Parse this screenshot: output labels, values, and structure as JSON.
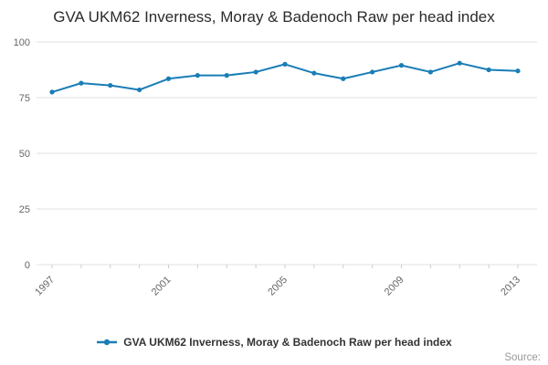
{
  "title": "GVA UKM62 Inverness, Moray & Badenoch Raw per head index",
  "legend": {
    "label": "GVA UKM62 Inverness, Moray & Badenoch Raw per head index"
  },
  "source": "Source:",
  "colors": {
    "line": "#1a7db6",
    "grid": "#e0e0e0",
    "tick": "#cccccc",
    "axis_text": "#666666"
  },
  "chart_data": {
    "type": "line",
    "title": "GVA UKM62 Inverness, Moray & Badenoch Raw per head index",
    "x": [
      1997,
      1998,
      1999,
      2000,
      2001,
      2002,
      2003,
      2004,
      2005,
      2006,
      2007,
      2008,
      2009,
      2010,
      2011,
      2012,
      2013
    ],
    "series": [
      {
        "name": "GVA UKM62 Inverness, Moray & Badenoch Raw per head index",
        "values": [
          77.5,
          81.5,
          80.5,
          78.5,
          83.5,
          85,
          85,
          86.5,
          90,
          86,
          83.5,
          86.5,
          89.5,
          86.5,
          90.5,
          87.5,
          87
        ]
      }
    ],
    "xlabel": "",
    "ylabel": "",
    "ylim": [
      0,
      100
    ],
    "yticks": [
      0,
      25,
      50,
      75,
      100
    ],
    "xtick_labels": [
      1997,
      2001,
      2005,
      2009,
      2013
    ],
    "grid": true,
    "legend_position": "bottom"
  }
}
